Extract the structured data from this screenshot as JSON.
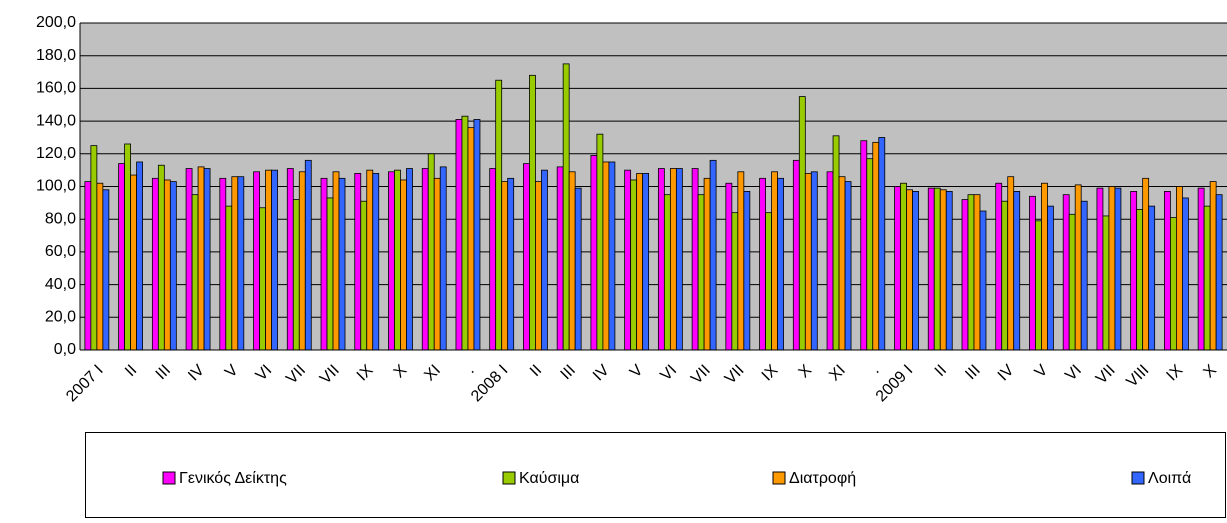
{
  "chart_data": {
    "type": "bar",
    "categories": [
      "2007 I",
      "II",
      "III",
      "IV",
      "V",
      "VI",
      "VII",
      "VII",
      "IX",
      "X",
      "XI",
      ".",
      "2008 I",
      "II",
      "III",
      "IV",
      "V",
      "VI",
      "VII",
      "VII",
      "IX",
      "X",
      "XI",
      ".",
      "2009 I",
      "II",
      "III",
      "IV",
      "V",
      "VI",
      "VII",
      "VIII",
      "IX",
      "X"
    ],
    "series": [
      {
        "name": "Γενικός Δείκτης",
        "color": "#ff00ff",
        "values": [
          103,
          114,
          105,
          111,
          105,
          109,
          111,
          105,
          108,
          109,
          111,
          141,
          111,
          114,
          112,
          119,
          110,
          111,
          111,
          102,
          105,
          116,
          109,
          128,
          100,
          99,
          92,
          102,
          94,
          95,
          99,
          97,
          97,
          99
        ]
      },
      {
        "name": "Καύσιμα",
        "color": "#99cc00",
        "values": [
          125,
          126,
          113,
          95,
          88,
          87,
          92,
          93,
          91,
          110,
          120,
          143,
          165,
          168,
          175,
          132,
          104,
          95,
          95,
          84,
          84,
          155,
          131,
          117,
          102,
          99,
          95,
          91,
          79,
          83,
          82,
          86,
          81,
          88
        ]
      },
      {
        "name": "Διατροφή",
        "color": "#ff9900",
        "values": [
          102,
          107,
          104,
          112,
          106,
          110,
          109,
          109,
          110,
          104,
          105,
          136,
          103,
          103,
          109,
          115,
          108,
          111,
          105,
          109,
          109,
          108,
          106,
          127,
          98,
          98,
          95,
          106,
          102,
          101,
          100,
          105,
          100,
          103
        ]
      },
      {
        "name": "Λοιπά",
        "color": "#3366ff",
        "values": [
          98,
          115,
          103,
          111,
          106,
          110,
          116,
          105,
          108,
          111,
          112,
          141,
          105,
          110,
          99,
          115,
          108,
          111,
          116,
          97,
          105,
          109,
          103,
          130,
          97,
          97,
          85,
          97,
          88,
          91,
          99,
          88,
          93,
          95
        ]
      }
    ],
    "ylim": [
      0,
      200
    ],
    "yticks": [
      {
        "value": 0,
        "label": "0,0"
      },
      {
        "value": 20,
        "label": "20,0"
      },
      {
        "value": 40,
        "label": "40,0"
      },
      {
        "value": 60,
        "label": "60,0"
      },
      {
        "value": 80,
        "label": "80,0"
      },
      {
        "value": 100,
        "label": "100,0"
      },
      {
        "value": 120,
        "label": "120,0"
      },
      {
        "value": 140,
        "label": "140,0"
      },
      {
        "value": 160,
        "label": "160,0"
      },
      {
        "value": 180,
        "label": "180,0"
      },
      {
        "value": 200,
        "label": "200,0"
      }
    ],
    "grid": true
  }
}
